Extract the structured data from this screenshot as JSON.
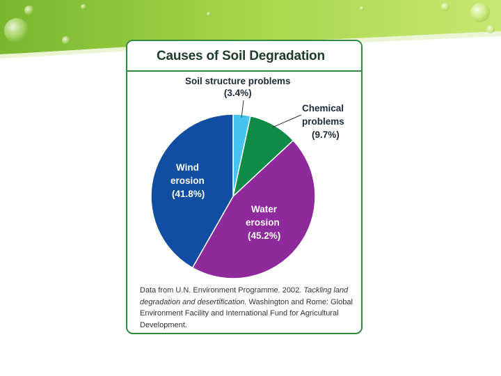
{
  "colors": {
    "accent_green": "#2e8b3e",
    "banner_green": "#8cc63f",
    "wind": "#0f4ea0",
    "water": "#8e2a9c",
    "chemical": "#0e8c47",
    "structure": "#45c2f0"
  },
  "card": {
    "title": "Causes of Soil Degradation"
  },
  "chart_data": {
    "type": "pie",
    "title": "Causes of Soil Degradation",
    "slices": [
      {
        "label": "Soil structure problems",
        "value": 3.4,
        "display": "(3.4%)",
        "color": "#45c2f0"
      },
      {
        "label": "Chemical problems",
        "value": 9.7,
        "display": "(9.7%)",
        "color": "#0e8c47"
      },
      {
        "label": "Water erosion",
        "value": 45.2,
        "display": "(45.2%)",
        "color": "#8e2a9c"
      },
      {
        "label": "Wind erosion",
        "value": 41.8,
        "display": "(41.8%)",
        "color": "#0f4ea0"
      }
    ],
    "labels": {
      "structure": {
        "line1": "Soil structure problems",
        "line2": "(3.4%)"
      },
      "chemical": {
        "line1": "Chemical",
        "line2": "problems",
        "line3": "(9.7%)"
      },
      "water": {
        "line1": "Water",
        "line2": "erosion",
        "line3": "(45.2%)"
      },
      "wind": {
        "line1": "Wind",
        "line2": "erosion",
        "line3": "(41.8%)"
      }
    }
  },
  "caption": {
    "prefix": "Data from U.N. Environment Programme. 2002. ",
    "italic": "Tackling land degradation and desertification.",
    "suffix": " Washington and Rome: Global Environment Facility and International Fund for Agricultural Development."
  }
}
